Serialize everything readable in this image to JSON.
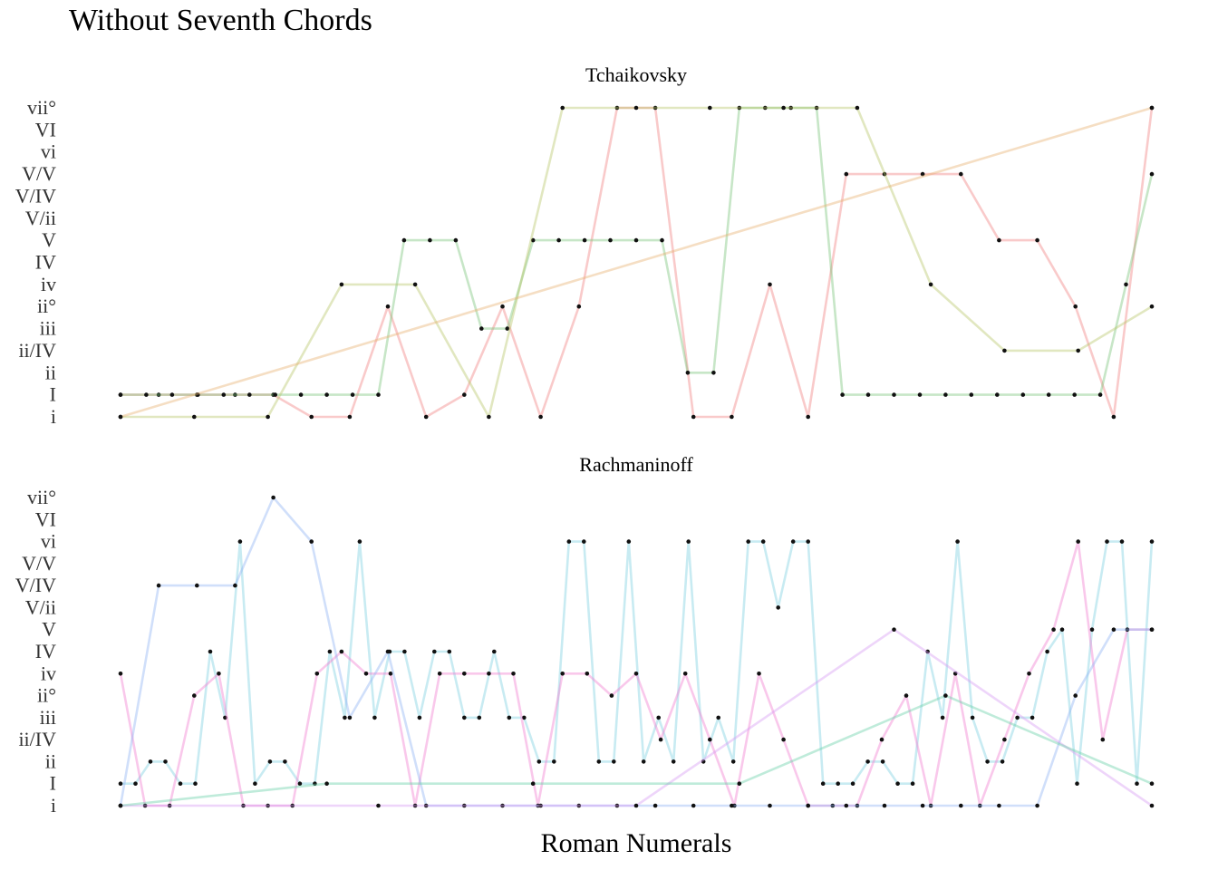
{
  "title": "Without Seventh Chords",
  "xlabel": "Roman Numerals",
  "chart_data": {
    "type": "line",
    "title": "Without Seventh Chords",
    "xlabel": "Roman Numerals",
    "ylabel": "",
    "y_categories": [
      "i",
      "I",
      "ii",
      "ii/IV",
      "iii",
      "ii°",
      "iv",
      "IV",
      "V",
      "V/ii",
      "V/IV",
      "V/V",
      "vi",
      "VI",
      "vii°"
    ],
    "grid": false,
    "legend": "none",
    "panels": [
      {
        "title": "Tchaikovsky",
        "series": [
          {
            "color": "#f08080",
            "values": [
              "I",
              "I",
              "I",
              "I",
              "I",
              "i",
              "i",
              "ii°",
              "i",
              "I",
              "ii°",
              "i",
              "ii°",
              "vii°",
              "vii°",
              "i",
              "i",
              "iv",
              "i",
              "V/V",
              "V/V",
              "V/V",
              "V/V",
              "V",
              "V",
              "ii°",
              "i",
              "vii°"
            ]
          },
          {
            "color": "#7ac47a",
            "values": [
              "I",
              "I",
              "I",
              "I",
              "I",
              "I",
              "I",
              "I",
              "I",
              "I",
              "I",
              "V",
              "V",
              "V",
              "iii",
              "iii",
              "V",
              "V",
              "V",
              "V",
              "V",
              "V",
              "ii",
              "ii",
              "vii°",
              "vii°",
              "vii°",
              "vii°",
              "I",
              "I",
              "I",
              "I",
              "I",
              "I",
              "I",
              "I",
              "I",
              "I",
              "I",
              "iv",
              "V/V"
            ]
          },
          {
            "color": "#b8c66a",
            "values": [
              "i",
              "i",
              "i",
              "iv",
              "iv",
              "i",
              "vii°",
              "vii°",
              "vii°",
              "vii°",
              "vii°",
              "iv",
              "ii/IV",
              "ii/IV",
              "ii°"
            ]
          },
          {
            "color": "#e8b070",
            "values": [
              "i",
              "vii°"
            ]
          }
        ]
      },
      {
        "title": "Rachmaninoff",
        "series": [
          {
            "color": "#7ccfe0",
            "values": [
              "I",
              "I",
              "ii",
              "ii",
              "I",
              "I",
              "IV",
              "iii",
              "vi",
              "I",
              "ii",
              "ii",
              "I",
              "I",
              "IV",
              "iii",
              "vi",
              "iii",
              "IV",
              "IV",
              "iii",
              "IV",
              "IV",
              "iii",
              "iii",
              "IV",
              "iii",
              "iii",
              "ii",
              "ii",
              "vi",
              "vi",
              "ii",
              "ii",
              "vi",
              "ii",
              "iii",
              "ii",
              "vi",
              "ii",
              "iii",
              "ii",
              "vi",
              "vi",
              "V/ii",
              "vi",
              "vi",
              "I",
              "I",
              "I",
              "ii",
              "ii",
              "I",
              "I",
              "IV",
              "iii",
              "vi",
              "iii",
              "ii",
              "ii",
              "iii",
              "iii",
              "IV",
              "V",
              "I",
              "V",
              "vi",
              "vi",
              "I",
              "vi"
            ]
          },
          {
            "color": "#f07cd0",
            "values": [
              "iv",
              "i",
              "i",
              "ii°",
              "iv",
              "i",
              "i",
              "i",
              "iv",
              "IV",
              "iv",
              "iv",
              "i",
              "iv",
              "iv",
              "iv",
              "iv",
              "i",
              "iv",
              "iv",
              "ii°",
              "iv",
              "ii/IV",
              "iv",
              "ii/IV",
              "i",
              "iv",
              "ii/IV",
              "i",
              "i",
              "i",
              "ii/IV",
              "ii°",
              "i",
              "iv",
              "i",
              "ii/IV",
              "iv",
              "V",
              "vi",
              "ii/IV",
              "V",
              "V"
            ]
          },
          {
            "color": "#8fb2f2",
            "values": [
              "i",
              "V/IV",
              "V/IV",
              "V/IV",
              "vii°",
              "vi",
              "iii",
              "IV",
              "i",
              "i",
              "i",
              "i",
              "i",
              "i",
              "i",
              "i",
              "i",
              "i",
              "i",
              "i",
              "i",
              "i",
              "i",
              "i",
              "i",
              "ii°",
              "V",
              "V"
            ]
          },
          {
            "color": "#d79cf2",
            "values": [
              "i",
              "i",
              "i",
              "V",
              "i"
            ]
          },
          {
            "color": "#66cfa6",
            "values": [
              "i",
              "I",
              "I",
              "I",
              "ii°",
              "I"
            ]
          }
        ]
      }
    ]
  }
}
